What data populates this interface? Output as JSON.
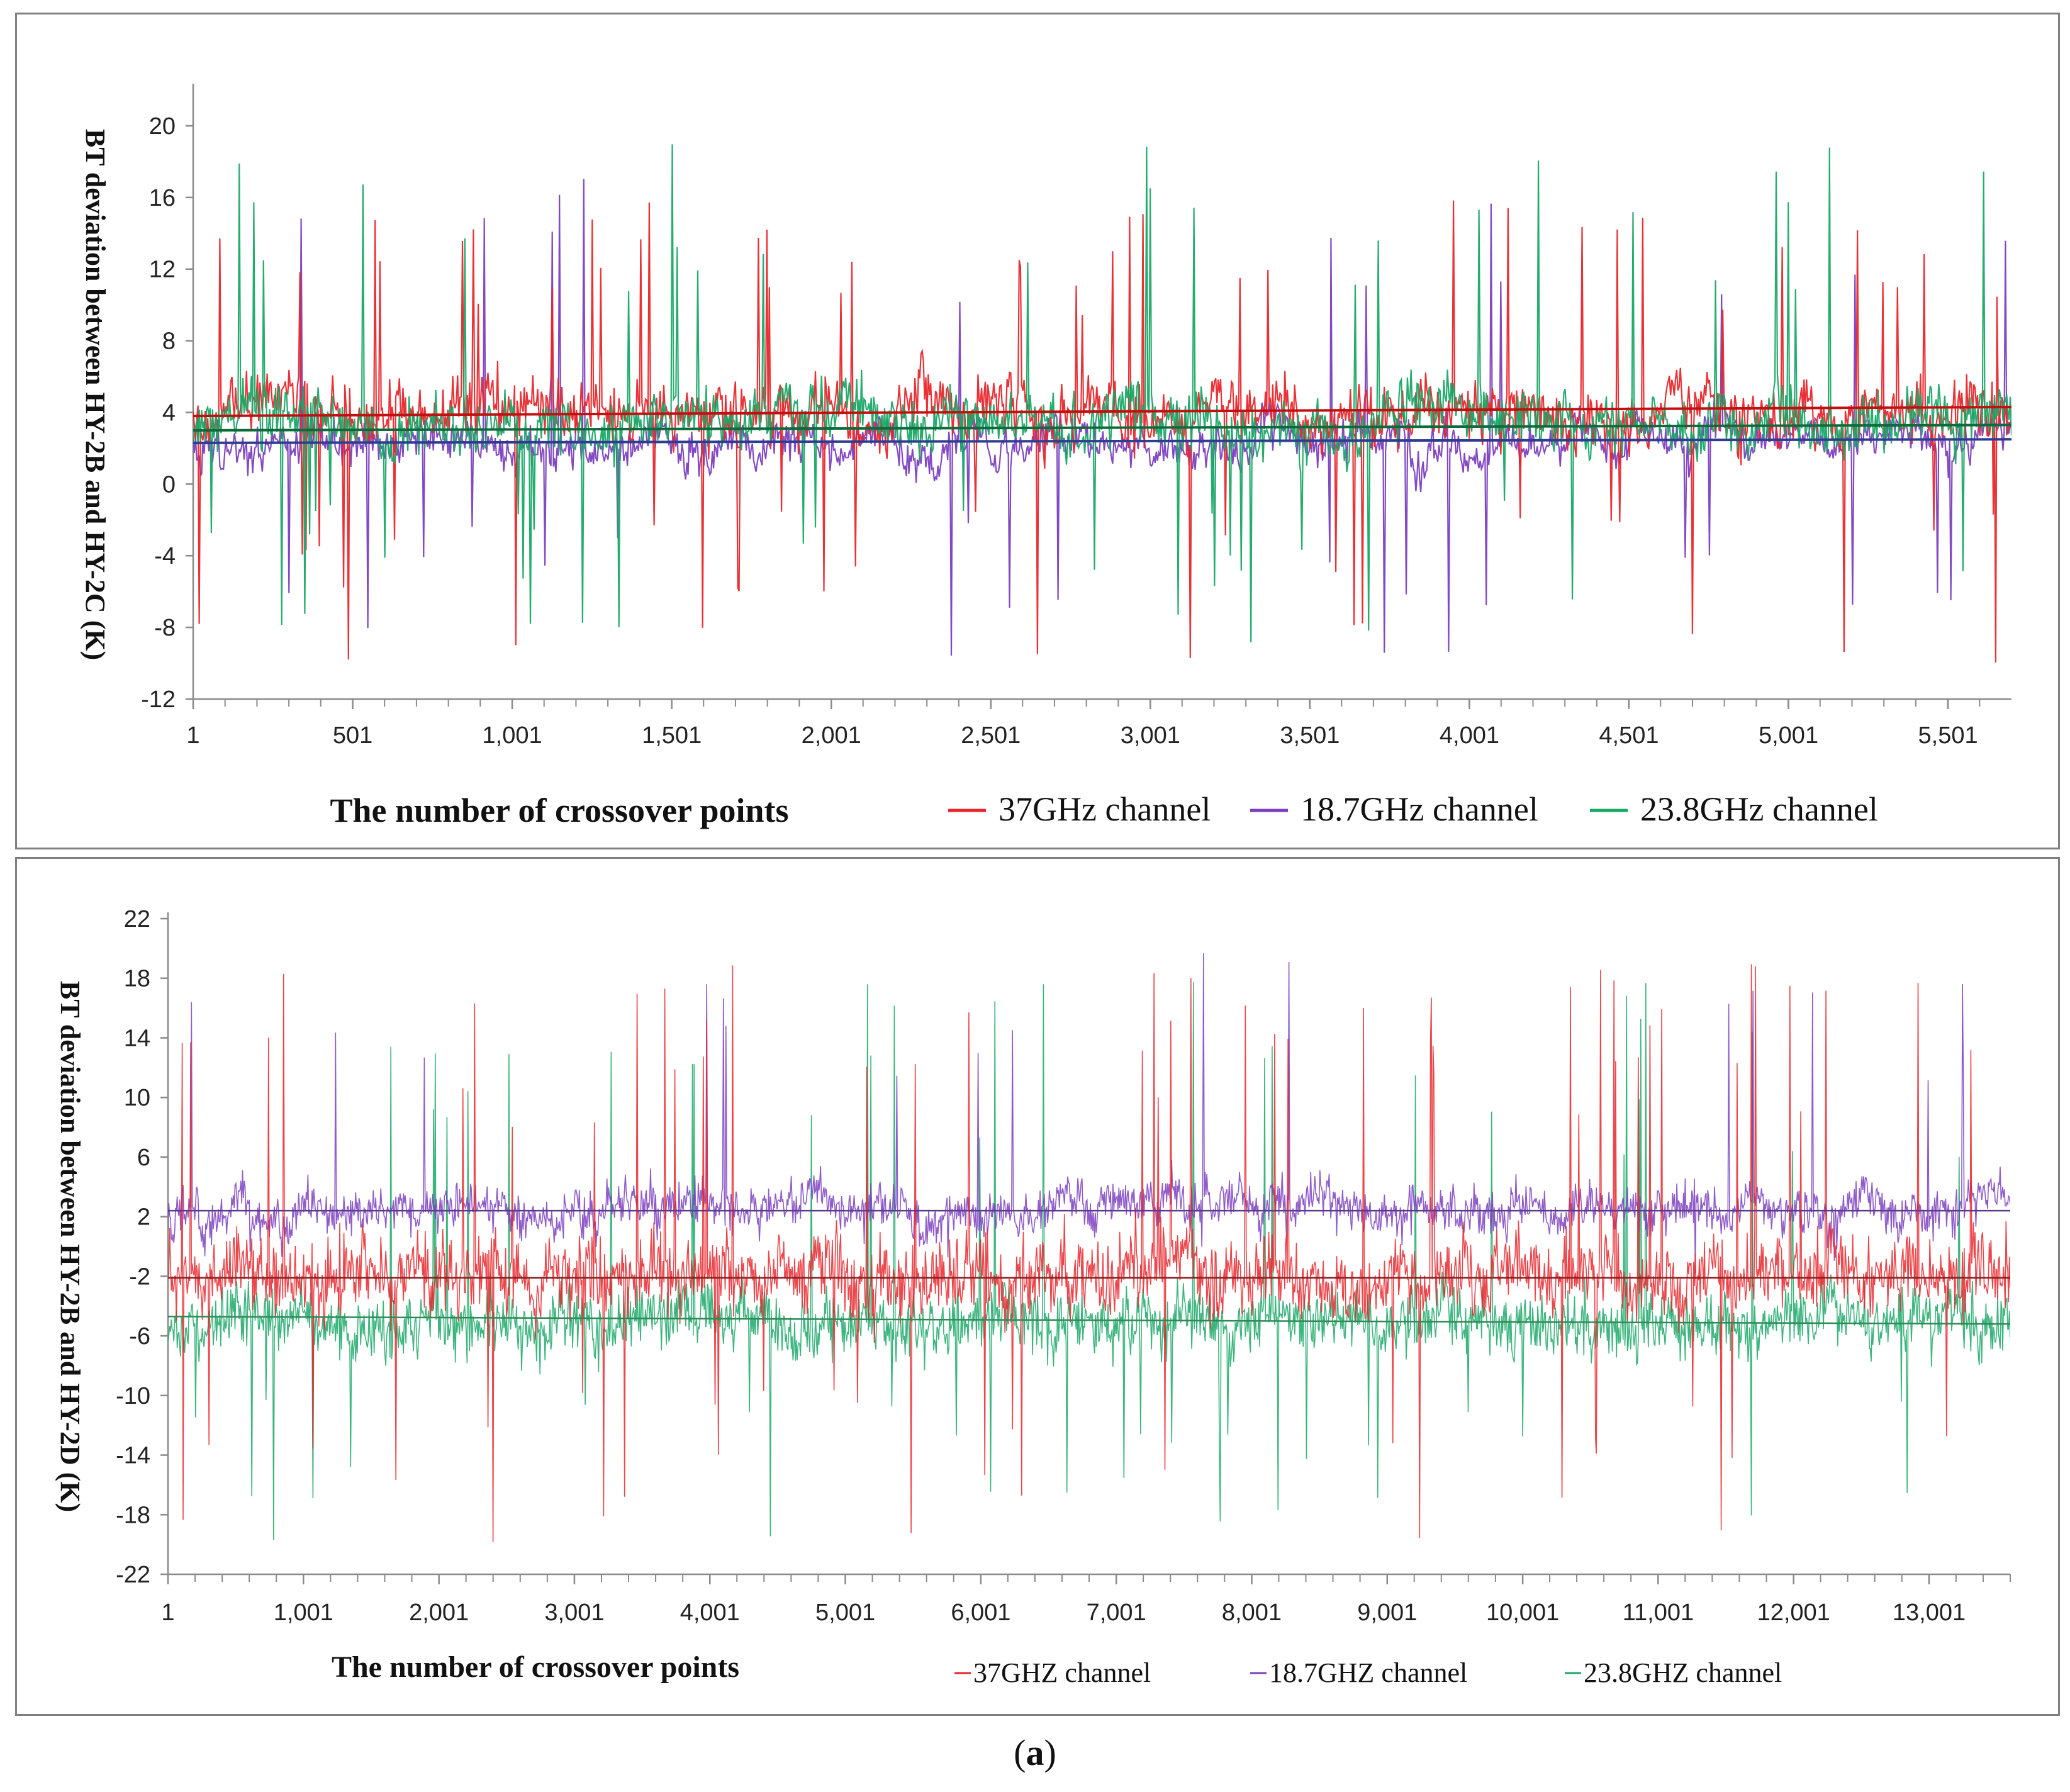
{
  "chart_data": [
    {
      "type": "line",
      "title": "",
      "ylabel": "BT deviation between HY-2B and HY-2C  (K)",
      "xlabel": "The number of crossover points",
      "x_range": [
        1,
        5700
      ],
      "ylim": [
        -12,
        22
      ],
      "yticks": [
        20,
        16,
        12,
        8,
        4,
        0,
        -4,
        -8,
        -12
      ],
      "xticks": [
        1,
        501,
        1001,
        1501,
        2001,
        2501,
        3001,
        3501,
        4001,
        4501,
        5001,
        5501
      ],
      "ytick_labels": [
        "20",
        "16",
        "12",
        "8",
        "4",
        "0",
        "-4",
        "-8",
        "-12"
      ],
      "xtick_labels": [
        "1",
        "501",
        "1,001",
        "1,501",
        "2,001",
        "2,501",
        "3,001",
        "3,501",
        "4,001",
        "4,501",
        "5,001",
        "5,501"
      ],
      "legend": [
        "37GHz channel",
        "18.7GHz channel",
        "23.8GHz channel"
      ],
      "series": [
        {
          "name": "37GHz channel",
          "color": "#e8262b",
          "mean": 4.0,
          "noise": 1.4,
          "spike_up": 16,
          "spike_down": -10,
          "spike_rate": 0.03,
          "trend": [
            3.8,
            4.3
          ],
          "seed": 11
        },
        {
          "name": "18.7GHz channel",
          "color": "#7b3fbf",
          "mean": 2.4,
          "noise": 0.9,
          "spike_up": 18,
          "spike_down": -10,
          "spike_rate": 0.012,
          "trend": [
            2.3,
            2.5
          ],
          "seed": 23
        },
        {
          "name": "23.8GHz channel",
          "color": "#1aa867",
          "mean": 3.6,
          "noise": 1.3,
          "spike_up": 19,
          "spike_down": -9,
          "spike_rate": 0.02,
          "trend": [
            3.0,
            3.3
          ],
          "seed": 37
        }
      ]
    },
    {
      "type": "line",
      "title": "",
      "ylabel": "BT deviation between HY-2B and HY-2D  (K)",
      "xlabel": "The number of crossover points",
      "x_range": [
        1,
        13600
      ],
      "ylim": [
        -22,
        22
      ],
      "yticks": [
        22,
        18,
        14,
        10,
        6,
        2,
        -2,
        -6,
        -10,
        -14,
        -18,
        -22
      ],
      "xticks": [
        1,
        1001,
        2001,
        3001,
        4001,
        5001,
        6001,
        7001,
        8001,
        9001,
        10001,
        11001,
        12001,
        13001
      ],
      "ytick_labels": [
        "22",
        "18",
        "14",
        "10",
        "6",
        "2",
        "-2",
        "-6",
        "-10",
        "-14",
        "-18",
        "-22"
      ],
      "xtick_labels": [
        "1",
        "1,001",
        "2,001",
        "3,001",
        "4,001",
        "5,001",
        "6,001",
        "7,001",
        "8,001",
        "9,001",
        "10,001",
        "11,001",
        "12,001",
        "13,001"
      ],
      "legend": [
        "37GHZ channel",
        "18.7GHZ channel",
        "23.8GHZ channel"
      ],
      "series": [
        {
          "name": "37GHZ channel",
          "color": "#e8262b",
          "mean": -2.0,
          "noise": 2.2,
          "spike_up": 19,
          "spike_down": -20,
          "spike_rate": 0.02,
          "trend": [
            -2.1,
            -2.1
          ],
          "seed": 51
        },
        {
          "name": "18.7GHZ channel",
          "color": "#7b3fbf",
          "mean": 2.6,
          "noise": 1.3,
          "spike_up": 20,
          "spike_down": -2,
          "spike_rate": 0.008,
          "trend": [
            2.4,
            2.4
          ],
          "seed": 67
        },
        {
          "name": "23.8GHZ channel",
          "color": "#1aa867",
          "mean": -5.0,
          "noise": 1.8,
          "spike_up": 19,
          "spike_down": -20,
          "spike_rate": 0.015,
          "trend": [
            -4.7,
            -5.2
          ],
          "seed": 79
        }
      ]
    }
  ],
  "caption": {
    "prefix": "(",
    "label": "a",
    "suffix": ")"
  }
}
